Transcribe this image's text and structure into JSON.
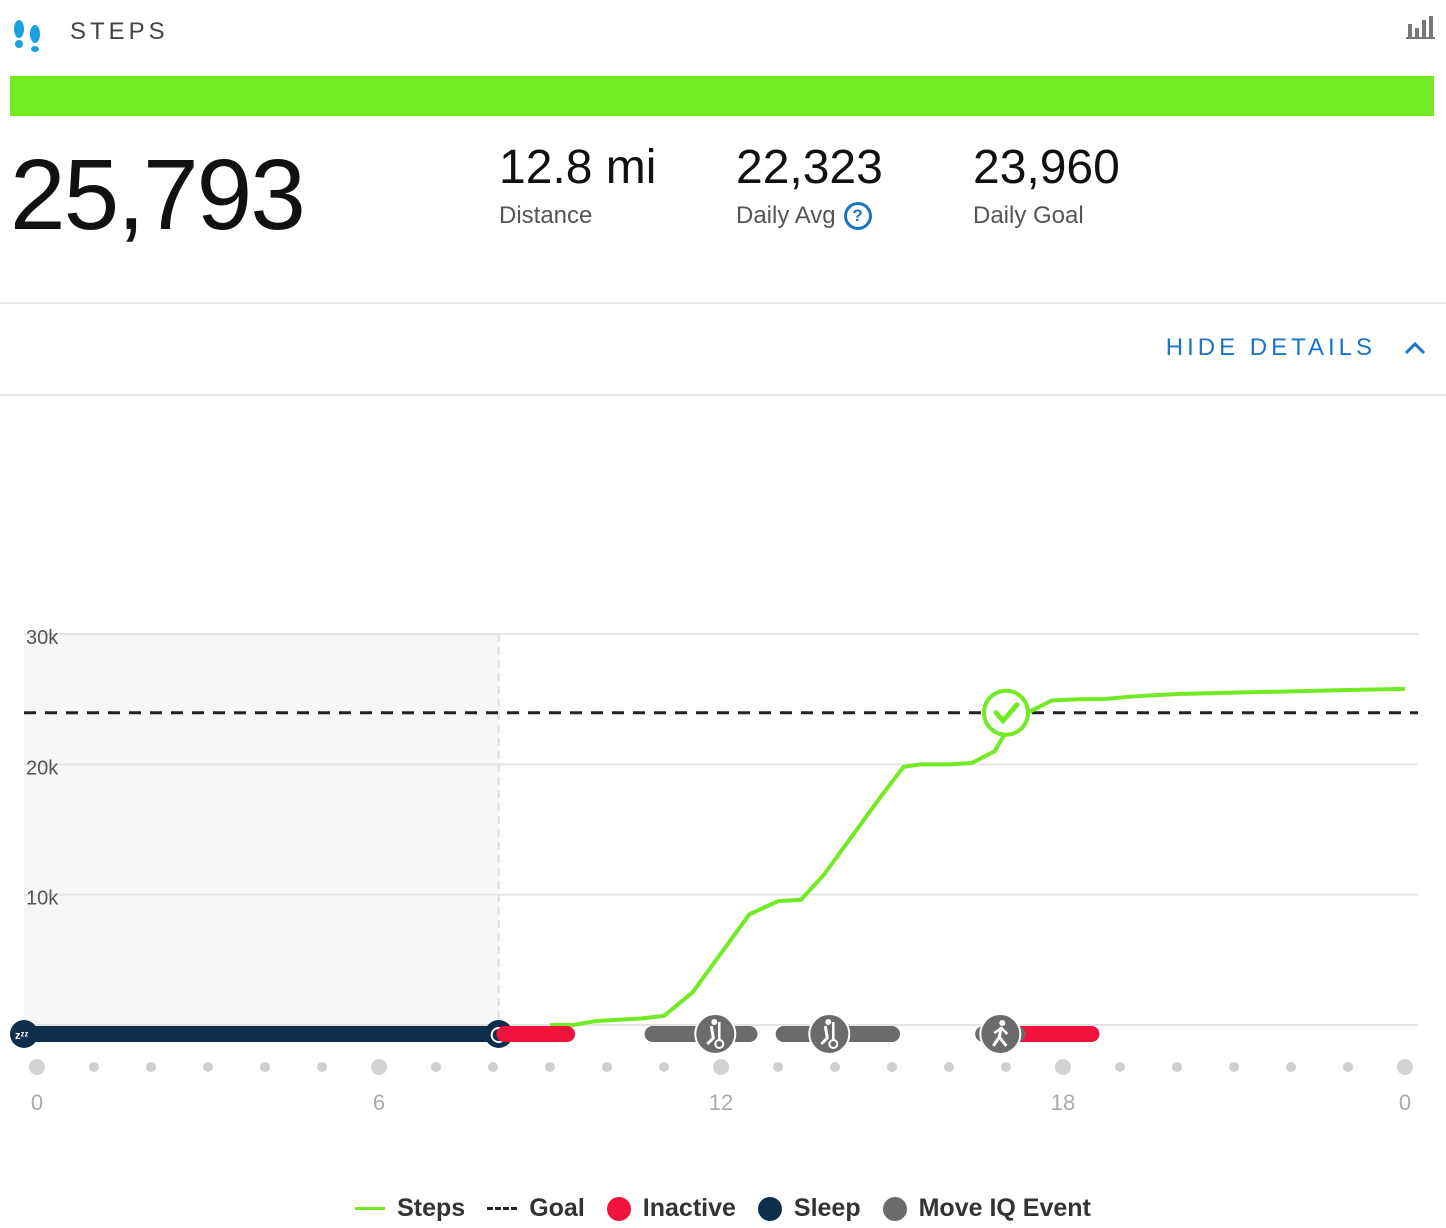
{
  "header": {
    "title": "STEPS",
    "icon": "footprints-icon",
    "chart_toggle_icon": "bar-chart-icon"
  },
  "progress": {
    "fraction": 1.0,
    "color": "#72ea24"
  },
  "summary": {
    "steps": "25,793",
    "distance": {
      "value": "12.8 mi",
      "label": "Distance"
    },
    "daily_avg": {
      "value": "22,323",
      "label": "Daily Avg",
      "help": "?"
    },
    "daily_goal": {
      "value": "23,960",
      "label": "Daily Goal"
    }
  },
  "details_toggle": {
    "label": "HIDE DETAILS",
    "icon": "chevron-up-icon"
  },
  "colors": {
    "steps": "#72ea24",
    "goal": "#222222",
    "inactive": "#f2133c",
    "sleep": "#0e2f4c",
    "move_iq": "#6b6b6b",
    "link": "#1a73c9"
  },
  "chart_data": {
    "type": "line",
    "x_ticks": [
      "0",
      "6",
      "12",
      "18",
      "0"
    ],
    "y_ticks": [
      "30k",
      "20k",
      "10k"
    ],
    "xlim": [
      0,
      24
    ],
    "ylim": [
      0,
      30000
    ],
    "goal": 23960,
    "series": [
      {
        "name": "Steps",
        "x": [
          9.0,
          9.4,
          9.8,
          10.2,
          10.6,
          11.0,
          11.5,
          12.0,
          12.5,
          13.0,
          13.4,
          13.8,
          14.3,
          14.8,
          15.2,
          15.5,
          16.0,
          16.4,
          16.8,
          17.0,
          17.4,
          17.8,
          18.3,
          18.7,
          19.2,
          20.0,
          21.0,
          22.0,
          23.0,
          24.0
        ],
        "y": [
          0,
          0,
          300,
          400,
          500,
          700,
          2500,
          5500,
          8500,
          9500,
          9600,
          11500,
          14500,
          17500,
          19800,
          20000,
          20000,
          20100,
          21000,
          22500,
          24000,
          24900,
          25000,
          25000,
          25200,
          25400,
          25500,
          25600,
          25700,
          25793
        ]
      }
    ],
    "goal_reached": {
      "x": 17.0,
      "icon": "check-icon"
    },
    "sleep_periods": [
      [
        0,
        8.1
      ]
    ],
    "inactive_periods": [
      [
        8.2,
        9.3
      ],
      [
        17.2,
        18.5
      ]
    ],
    "move_iq_events": [
      {
        "start": 10.8,
        "end": 12.5,
        "icon_x": 11.9,
        "icon": "elliptical-icon"
      },
      {
        "start": 13.1,
        "end": 15.0,
        "icon_x": 13.9,
        "icon": "elliptical-icon"
      },
      {
        "start": 16.6,
        "end": 17.2,
        "icon_x": 16.9,
        "icon": "walking-icon"
      }
    ],
    "sleep_start_icon": "zzz-icon",
    "wake_icon": "alarm-clock-icon",
    "legend": [
      "Steps",
      "Goal",
      "Inactive",
      "Sleep",
      "Move IQ Event"
    ]
  }
}
